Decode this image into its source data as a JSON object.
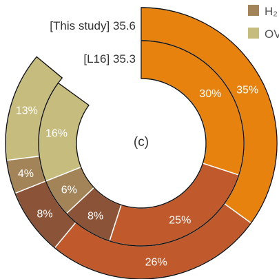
{
  "chart_data": {
    "type": "pie",
    "title": "(c)",
    "rings": [
      {
        "name": "[This study] 35.6",
        "start_angle_deg": 0,
        "segments": [
          {
            "label": "35%",
            "value": 35,
            "color": "#e8820f"
          },
          {
            "label": "26%",
            "value": 26,
            "color": "#c0592c"
          },
          {
            "label": "8%",
            "value": 8,
            "color": "#8b5438"
          },
          {
            "label": "4%",
            "value": 4,
            "color": "#a38458"
          },
          {
            "label": "13%",
            "value": 13,
            "color": "#c5bc7e"
          }
        ]
      },
      {
        "name": "[L16] 35.3",
        "start_angle_deg": 0,
        "segments": [
          {
            "label": "30%",
            "value": 30,
            "color": "#e8820f"
          },
          {
            "label": "25%",
            "value": 25,
            "color": "#c0592c"
          },
          {
            "label": "8%",
            "value": 8,
            "color": "#8b5438"
          },
          {
            "label": "6%",
            "value": 6,
            "color": "#a38458"
          },
          {
            "label": "16%",
            "value": 16,
            "color": "#c5bc7e"
          }
        ]
      }
    ],
    "legend": [
      {
        "label": "H₂",
        "color": "#a38458"
      },
      {
        "label": "OV",
        "color": "#c5bc7e"
      }
    ],
    "legend_position": "top-right"
  }
}
